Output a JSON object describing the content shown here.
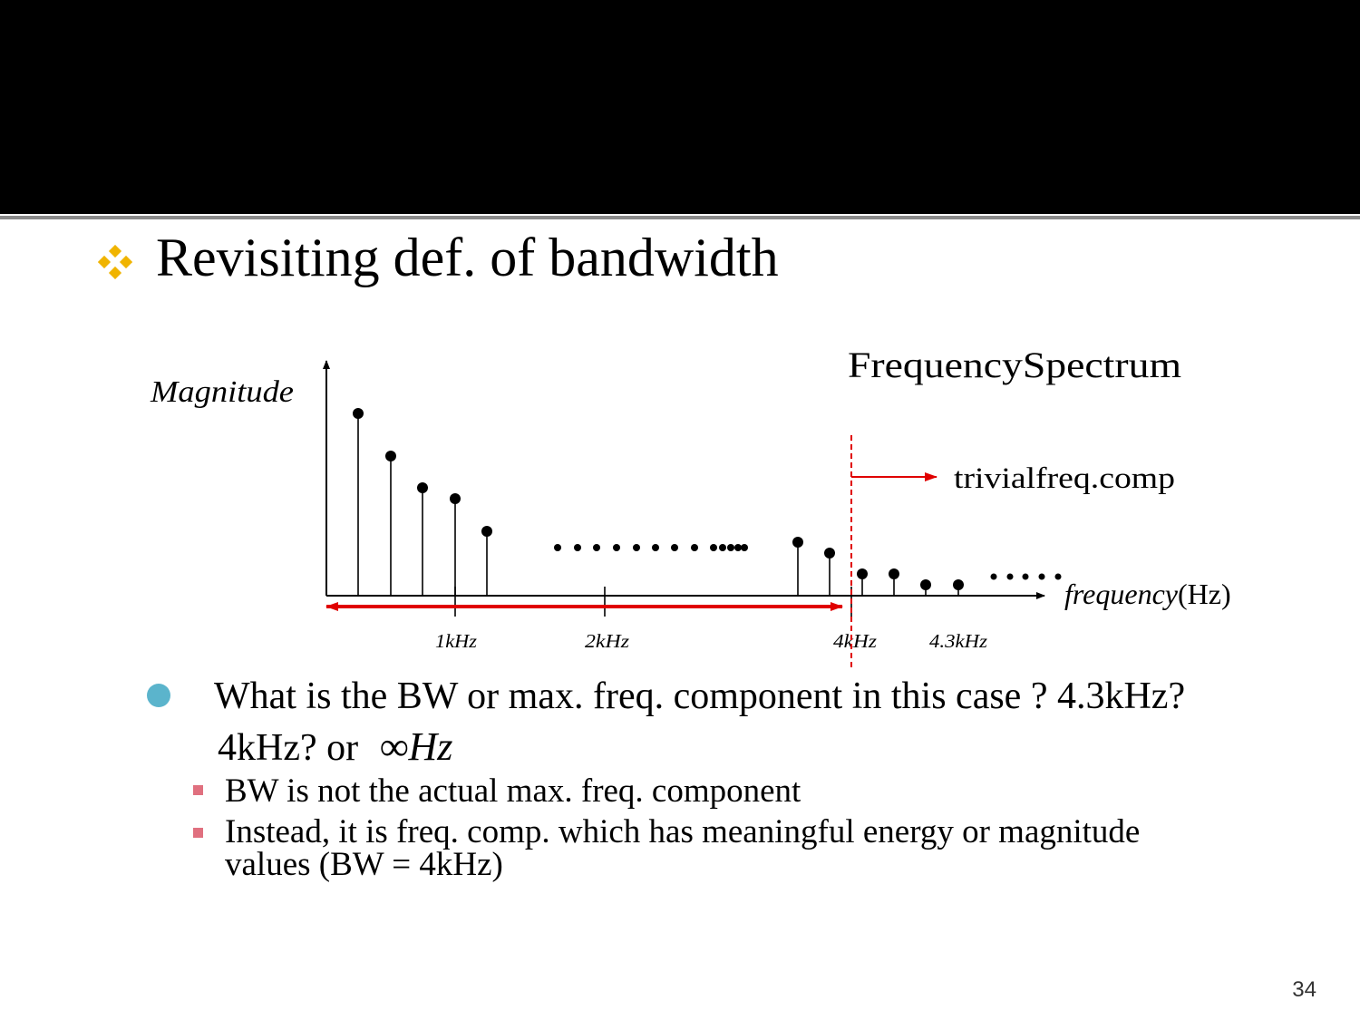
{
  "slide": {
    "heading": "Revisiting def. of bandwidth",
    "page_number": "34"
  },
  "diagram": {
    "title": "FrequencySpectrum",
    "y_axis_label": "Magnitude",
    "x_axis_label": "frequency",
    "x_axis_unit": "(Hz)",
    "trivial_label": "trivialfreq.comp",
    "ticks": [
      "1kHz",
      "2kHz",
      "4kHz",
      "4.3kHz"
    ],
    "colors": {
      "bandwidth_arrow": "#e00000",
      "stems": "#000000"
    }
  },
  "bullets": [
    {
      "text": "What is the BW or max. freq. component in this case ?  4.3kHz?",
      "line2": "4kHz? or",
      "line2_math": "∞Hz"
    }
  ],
  "sub_bullets": [
    {
      "text": "BW is not the actual max. freq. component"
    },
    {
      "text_line1": "Instead, it is freq. comp. which has meaningful  energy or magnitude",
      "text_line2": "values (BW = 4kHz)"
    }
  ]
}
